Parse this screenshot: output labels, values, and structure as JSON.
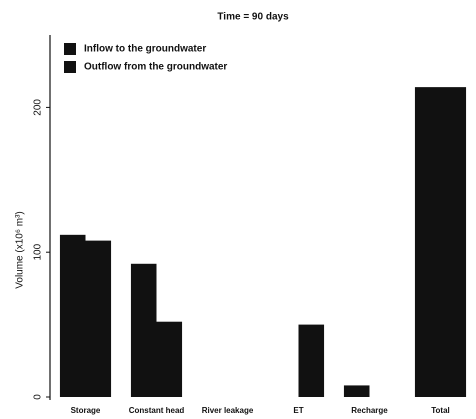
{
  "chart_data": {
    "type": "bar",
    "title": "Time = 90 days",
    "y_label": "Volume (x10⁶ m³)",
    "categories": [
      "Storage",
      "Constant head",
      "River leakage",
      "ET",
      "Recharge",
      "Total"
    ],
    "series": [
      {
        "name": "Inflow to the groundwater",
        "color": "#111111",
        "values": [
          112,
          92,
          0,
          0,
          8,
          214
        ]
      },
      {
        "name": "Outflow from the groundwater",
        "color": "#111111",
        "values": [
          108,
          52,
          0,
          50,
          0,
          214
        ]
      }
    ],
    "ylim": [
      0,
      250
    ],
    "yticks": [
      0,
      100,
      200
    ],
    "legend": "upper left"
  }
}
